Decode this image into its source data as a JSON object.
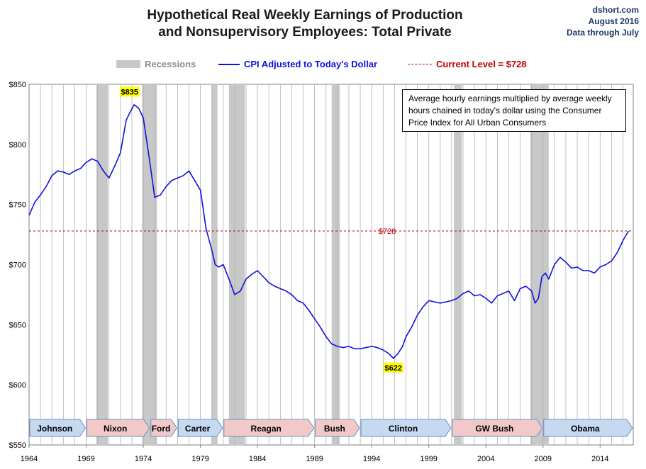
{
  "header": {
    "title_line1": "Hypothetical Real Weekly Earnings of Production",
    "title_line2": "and Nonsupervisory Employees: Total Private",
    "source_line1": "dshort.com",
    "source_line2": "August 2016",
    "source_line3": "Data through July"
  },
  "legend": {
    "recessions": "Recessions",
    "series": "CPI Adjusted to Today's Dollar",
    "current": "Current Level = $728"
  },
  "note": "Average hourly earnings multiplied by average weekly hours chained in today's dollar using the Consumer Price Index for All Urban Consumers",
  "colors": {
    "series": "#1010dd",
    "current_line": "#c00000",
    "recession": "#c8c8c8",
    "label_highlight": "#ffff00",
    "dem_arrow": "#c5d9f1",
    "rep_arrow": "#f2c9c9",
    "arrow_border": "#6a8fc0"
  },
  "chart_data": {
    "type": "line",
    "title": "Hypothetical Real Weekly Earnings of Production and Nonsupervisory Employees: Total Private",
    "xlim": [
      1964,
      2016.9
    ],
    "ylim": [
      550,
      850
    ],
    "x_ticks": [
      1964,
      1969,
      1974,
      1979,
      1984,
      1989,
      1994,
      1999,
      2004,
      2009,
      2014
    ],
    "y_ticks": [
      550,
      600,
      650,
      700,
      750,
      800,
      850
    ],
    "y_tick_labels": [
      "$550",
      "$600",
      "$650",
      "$700",
      "$750",
      "$800",
      "$850"
    ],
    "grid": "vertical yearly lines",
    "current_level": 728,
    "current_level_label": "$728",
    "annotations": [
      {
        "label": "$835",
        "x": 1972.8,
        "y": 835
      },
      {
        "label": "$622",
        "x": 1995.9,
        "y": 622
      }
    ],
    "recessions": [
      [
        1969.9,
        1970.9
      ],
      [
        1973.9,
        1975.2
      ],
      [
        1980.0,
        1980.5
      ],
      [
        1981.5,
        1982.9
      ],
      [
        1990.5,
        1991.2
      ],
      [
        2001.2,
        2001.9
      ],
      [
        2007.9,
        2009.5
      ]
    ],
    "presidents": [
      {
        "name": "Johnson",
        "start": 1964.0,
        "end": 1969.0,
        "party": "D"
      },
      {
        "name": "Nixon",
        "start": 1969.0,
        "end": 1974.6,
        "party": "R"
      },
      {
        "name": "Ford",
        "start": 1974.6,
        "end": 1977.0,
        "party": "R"
      },
      {
        "name": "Carter",
        "start": 1977.0,
        "end": 1981.0,
        "party": "D"
      },
      {
        "name": "Reagan",
        "start": 1981.0,
        "end": 1989.0,
        "party": "R"
      },
      {
        "name": "Bush",
        "start": 1989.0,
        "end": 1993.0,
        "party": "R"
      },
      {
        "name": "Clinton",
        "start": 1993.0,
        "end": 2001.0,
        "party": "D"
      },
      {
        "name": "GW Bush",
        "start": 2001.0,
        "end": 2009.0,
        "party": "R"
      },
      {
        "name": "Obama",
        "start": 2009.0,
        "end": 2016.9,
        "party": "D"
      }
    ],
    "series": [
      {
        "name": "CPI Adjusted to Today's Dollar",
        "x": [
          1964.0,
          1964.5,
          1965.0,
          1965.5,
          1966.0,
          1966.5,
          1967.0,
          1967.5,
          1968.0,
          1968.5,
          1969.0,
          1969.5,
          1970.0,
          1970.5,
          1971.0,
          1971.5,
          1972.0,
          1972.5,
          1972.8,
          1973.2,
          1973.6,
          1974.0,
          1974.5,
          1975.0,
          1975.5,
          1976.0,
          1976.5,
          1977.0,
          1977.5,
          1978.0,
          1978.5,
          1979.0,
          1979.5,
          1980.0,
          1980.3,
          1980.6,
          1981.0,
          1981.5,
          1982.0,
          1982.5,
          1983.0,
          1983.5,
          1984.0,
          1984.5,
          1985.0,
          1985.5,
          1986.0,
          1986.5,
          1987.0,
          1987.5,
          1988.0,
          1988.5,
          1989.0,
          1989.5,
          1990.0,
          1990.5,
          1991.0,
          1991.5,
          1992.0,
          1992.5,
          1993.0,
          1993.5,
          1994.0,
          1994.5,
          1995.0,
          1995.5,
          1995.9,
          1996.3,
          1996.7,
          1997.0,
          1997.5,
          1998.0,
          1998.5,
          1999.0,
          1999.5,
          2000.0,
          2000.5,
          2001.0,
          2001.5,
          2002.0,
          2002.5,
          2003.0,
          2003.5,
          2004.0,
          2004.5,
          2005.0,
          2005.5,
          2006.0,
          2006.5,
          2007.0,
          2007.5,
          2008.0,
          2008.3,
          2008.6,
          2008.9,
          2009.2,
          2009.5,
          2010.0,
          2010.5,
          2011.0,
          2011.5,
          2012.0,
          2012.5,
          2013.0,
          2013.5,
          2014.0,
          2014.5,
          2015.0,
          2015.5,
          2016.0,
          2016.3,
          2016.5
        ],
        "y": [
          741,
          752,
          758,
          765,
          774,
          778,
          777,
          775,
          778,
          780,
          785,
          788,
          786,
          778,
          772,
          782,
          793,
          820,
          826,
          833,
          830,
          822,
          790,
          756,
          758,
          765,
          770,
          772,
          774,
          778,
          770,
          762,
          730,
          712,
          700,
          698,
          700,
          688,
          675,
          678,
          688,
          692,
          695,
          690,
          685,
          682,
          680,
          678,
          675,
          670,
          668,
          662,
          655,
          648,
          640,
          634,
          632,
          631,
          632,
          630,
          630,
          631,
          632,
          631,
          629,
          626,
          622,
          626,
          632,
          640,
          648,
          658,
          665,
          670,
          669,
          668,
          669,
          670,
          672,
          676,
          678,
          674,
          675,
          672,
          668,
          674,
          676,
          678,
          670,
          680,
          682,
          678,
          668,
          672,
          690,
          693,
          688,
          700,
          706,
          702,
          697,
          698,
          695,
          695,
          693,
          698,
          700,
          703,
          710,
          720,
          725,
          728
        ]
      }
    ]
  }
}
